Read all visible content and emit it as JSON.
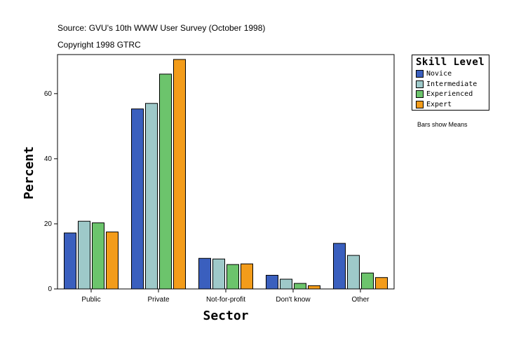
{
  "header": {
    "source": "Source: GVU's 10th WWW User Survey (October 1998)",
    "copyright": "Copyright 1998 GTRC"
  },
  "note": "Bars show Means",
  "chart_data": {
    "type": "bar",
    "title": "",
    "xlabel": "Sector",
    "ylabel": "Percent",
    "categories": [
      "Public",
      "Private",
      "Not-for-profit",
      "Don't know",
      "Other"
    ],
    "ylim": [
      0,
      72
    ],
    "yticks": [
      0,
      20,
      40,
      60
    ],
    "grid": false,
    "legend_title": "Skill Level",
    "legend_position": "top-right",
    "series": [
      {
        "name": "Novice",
        "color": "#3a5fbe",
        "values": [
          17.2,
          55.3,
          9.4,
          4.2,
          14.0
        ]
      },
      {
        "name": "Intermediate",
        "color": "#9ec9c9",
        "values": [
          20.8,
          57.0,
          9.2,
          3.0,
          10.3
        ]
      },
      {
        "name": "Experienced",
        "color": "#6cc46c",
        "values": [
          20.3,
          66.0,
          7.5,
          1.7,
          4.9
        ]
      },
      {
        "name": "Expert",
        "color": "#f39c1a",
        "values": [
          17.5,
          70.5,
          7.7,
          1.0,
          3.5
        ]
      }
    ]
  }
}
